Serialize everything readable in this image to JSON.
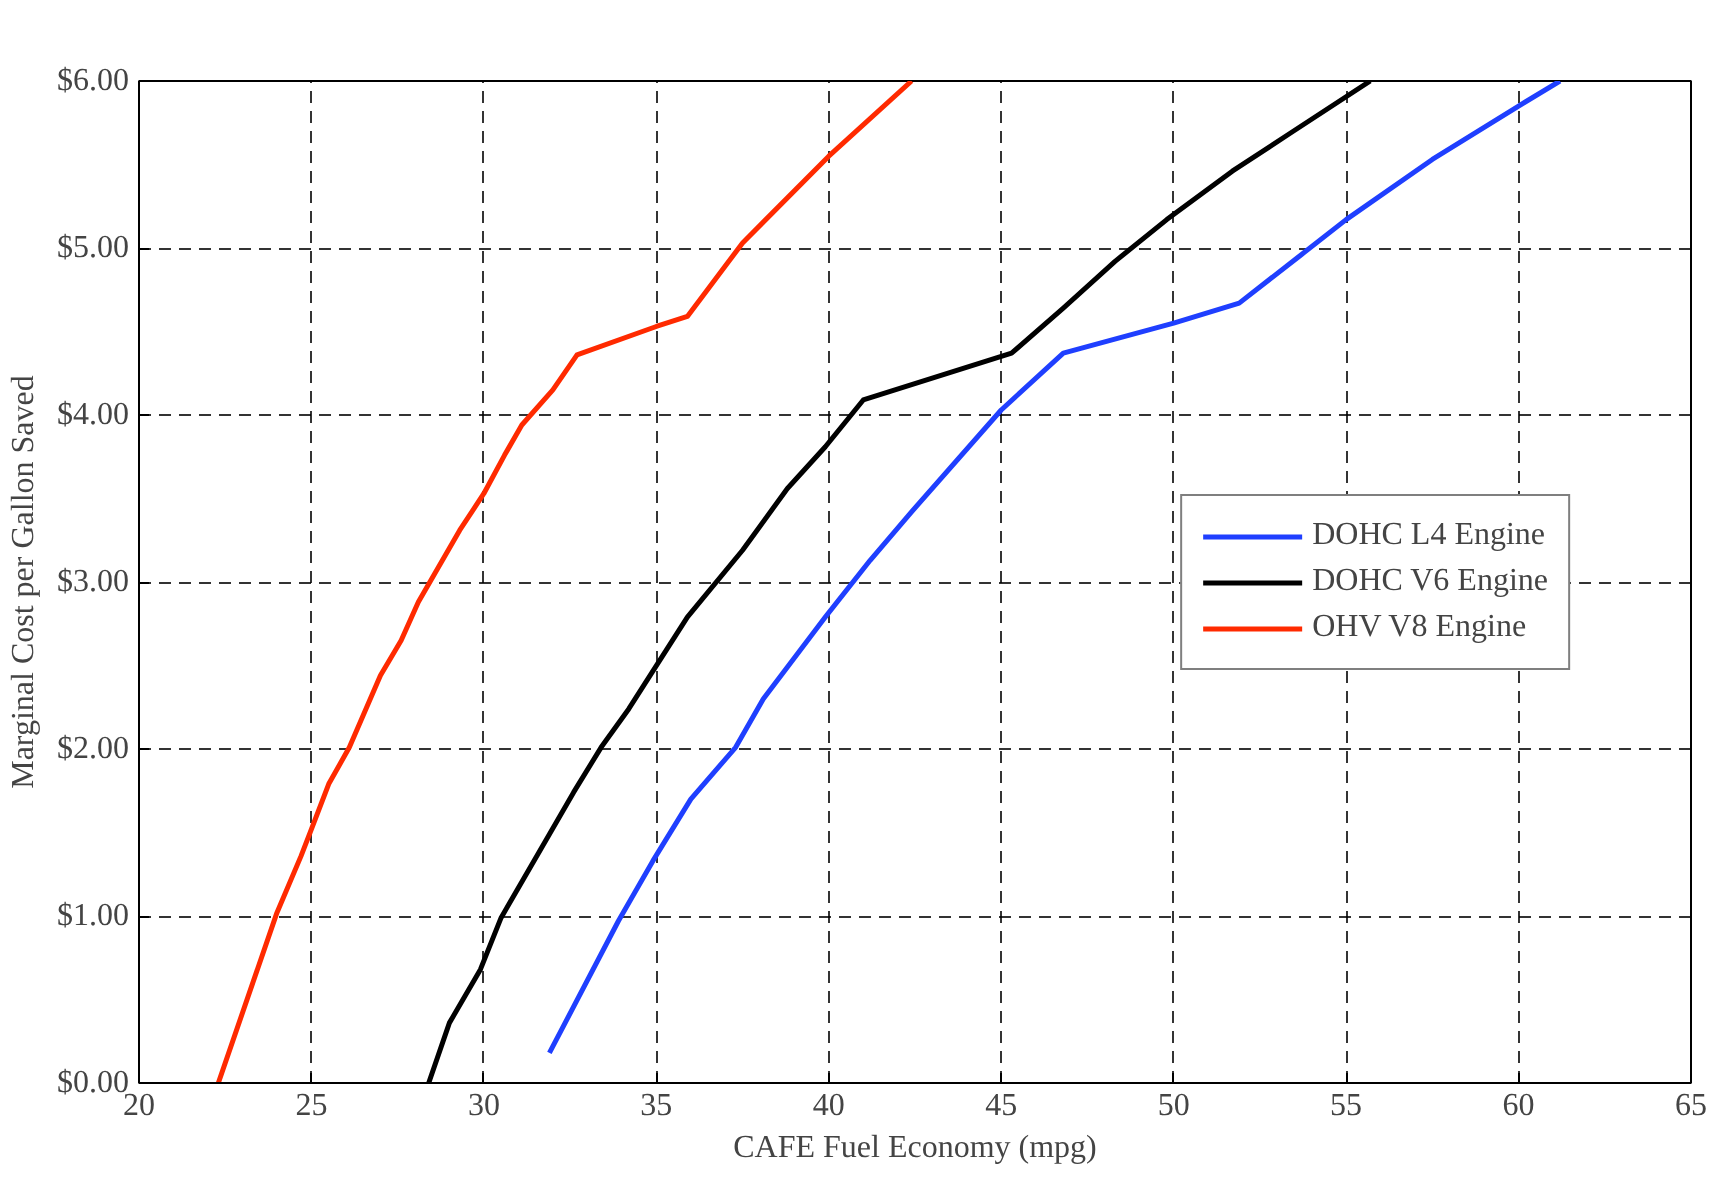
{
  "chart_data": {
    "type": "line",
    "xlabel": "CAFE Fuel Economy (mpg)",
    "ylabel": "Marginal Cost per Gallon Saved",
    "xlim": [
      20,
      65
    ],
    "xticks": [
      20,
      25,
      30,
      35,
      40,
      45,
      50,
      55,
      60,
      65
    ],
    "ylim": [
      0,
      6
    ],
    "yticks": [
      {
        "value": 0,
        "label": "$0.00"
      },
      {
        "value": 1,
        "label": "$1.00"
      },
      {
        "value": 2,
        "label": "$2.00"
      },
      {
        "value": 3,
        "label": "$3.00"
      },
      {
        "value": 4,
        "label": "$4.00"
      },
      {
        "value": 5,
        "label": "$5.00"
      },
      {
        "value": 6,
        "label": "$6.00"
      }
    ],
    "grid": true,
    "legend": "right",
    "line_style": "solid",
    "marker": "none",
    "series": [
      {
        "name": "DOHC L4 Engine",
        "color": "#1f3fff",
        "x": [
          31.9,
          33.9,
          34.9,
          36.0,
          37.3,
          38.1,
          39.9,
          41.2,
          42.4,
          45.0,
          46.8,
          50.0,
          51.9,
          53.7,
          55.0,
          57.5,
          60.0,
          61.2
        ],
        "values": [
          0.18,
          0.97,
          1.33,
          1.7,
          2.01,
          2.3,
          2.79,
          3.13,
          3.42,
          4.03,
          4.37,
          4.55,
          4.67,
          4.96,
          5.17,
          5.53,
          5.85,
          6.0
        ]
      },
      {
        "name": "DOHC V6 Engine",
        "color": "#000000",
        "x": [
          28.4,
          29.0,
          29.9,
          30.5,
          31.9,
          32.6,
          33.4,
          34.2,
          35.9,
          37.5,
          38.8,
          39.9,
          41.0,
          45.3,
          46.8,
          48.3,
          49.8,
          51.7,
          53.4,
          55.7
        ],
        "values": [
          0.0,
          0.36,
          0.68,
          0.99,
          1.49,
          1.74,
          2.01,
          2.24,
          2.79,
          3.19,
          3.56,
          3.81,
          4.09,
          4.37,
          4.64,
          4.92,
          5.17,
          5.46,
          5.69,
          6.0
        ]
      },
      {
        "name": "OHV V8 Engine",
        "color": "#ff2a00",
        "x": [
          22.3,
          24.0,
          24.7,
          25.0,
          25.5,
          26.1,
          27.0,
          27.6,
          28.1,
          29.3,
          30.0,
          30.6,
          31.1,
          32.0,
          32.7,
          35.0,
          35.9,
          37.5,
          40.0,
          42.4
        ],
        "values": [
          0.0,
          1.02,
          1.36,
          1.52,
          1.79,
          2.01,
          2.44,
          2.65,
          2.88,
          3.31,
          3.53,
          3.76,
          3.94,
          4.15,
          4.36,
          4.53,
          4.59,
          5.03,
          5.55,
          6.0
        ]
      }
    ]
  }
}
